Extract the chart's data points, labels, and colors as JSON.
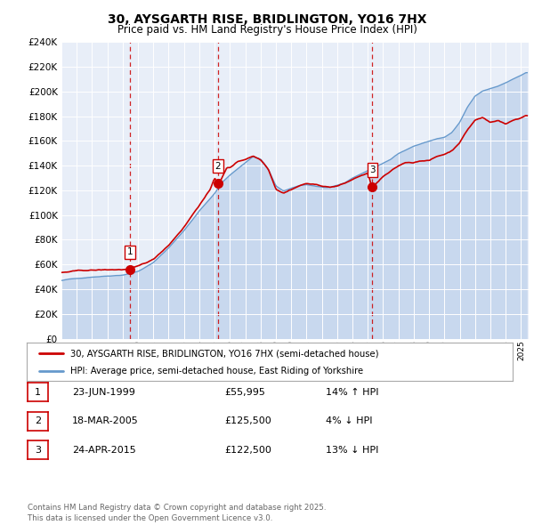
{
  "title": "30, AYSGARTH RISE, BRIDLINGTON, YO16 7HX",
  "subtitle": "Price paid vs. HM Land Registry's House Price Index (HPI)",
  "legend_line1": "30, AYSGARTH RISE, BRIDLINGTON, YO16 7HX (semi-detached house)",
  "legend_line2": "HPI: Average price, semi-detached house, East Riding of Yorkshire",
  "ylim": [
    0,
    240000
  ],
  "yticks": [
    0,
    20000,
    40000,
    60000,
    80000,
    100000,
    120000,
    140000,
    160000,
    180000,
    200000,
    220000,
    240000
  ],
  "xlim_start": 1995.0,
  "xlim_end": 2025.5,
  "background_color": "#ffffff",
  "plot_bg_color": "#e8eef8",
  "grid_color": "#ffffff",
  "sale_color": "#cc0000",
  "hpi_fill_color": "#c8d8ee",
  "hpi_line_color": "#6699cc",
  "vline_color": "#cc0000",
  "sale_points": [
    {
      "year": 1999.47,
      "price": 55995,
      "label": "1"
    },
    {
      "year": 2005.21,
      "price": 125500,
      "label": "2"
    },
    {
      "year": 2015.3,
      "price": 122500,
      "label": "3"
    }
  ],
  "table_rows": [
    {
      "num": "1",
      "date": "23-JUN-1999",
      "price": "£55,995",
      "note": "14% ↑ HPI"
    },
    {
      "num": "2",
      "date": "18-MAR-2005",
      "price": "£125,500",
      "note": "4% ↓ HPI"
    },
    {
      "num": "3",
      "date": "24-APR-2015",
      "price": "£122,500",
      "note": "13% ↓ HPI"
    }
  ],
  "footer": "Contains HM Land Registry data © Crown copyright and database right 2025.\nThis data is licensed under the Open Government Licence v3.0."
}
